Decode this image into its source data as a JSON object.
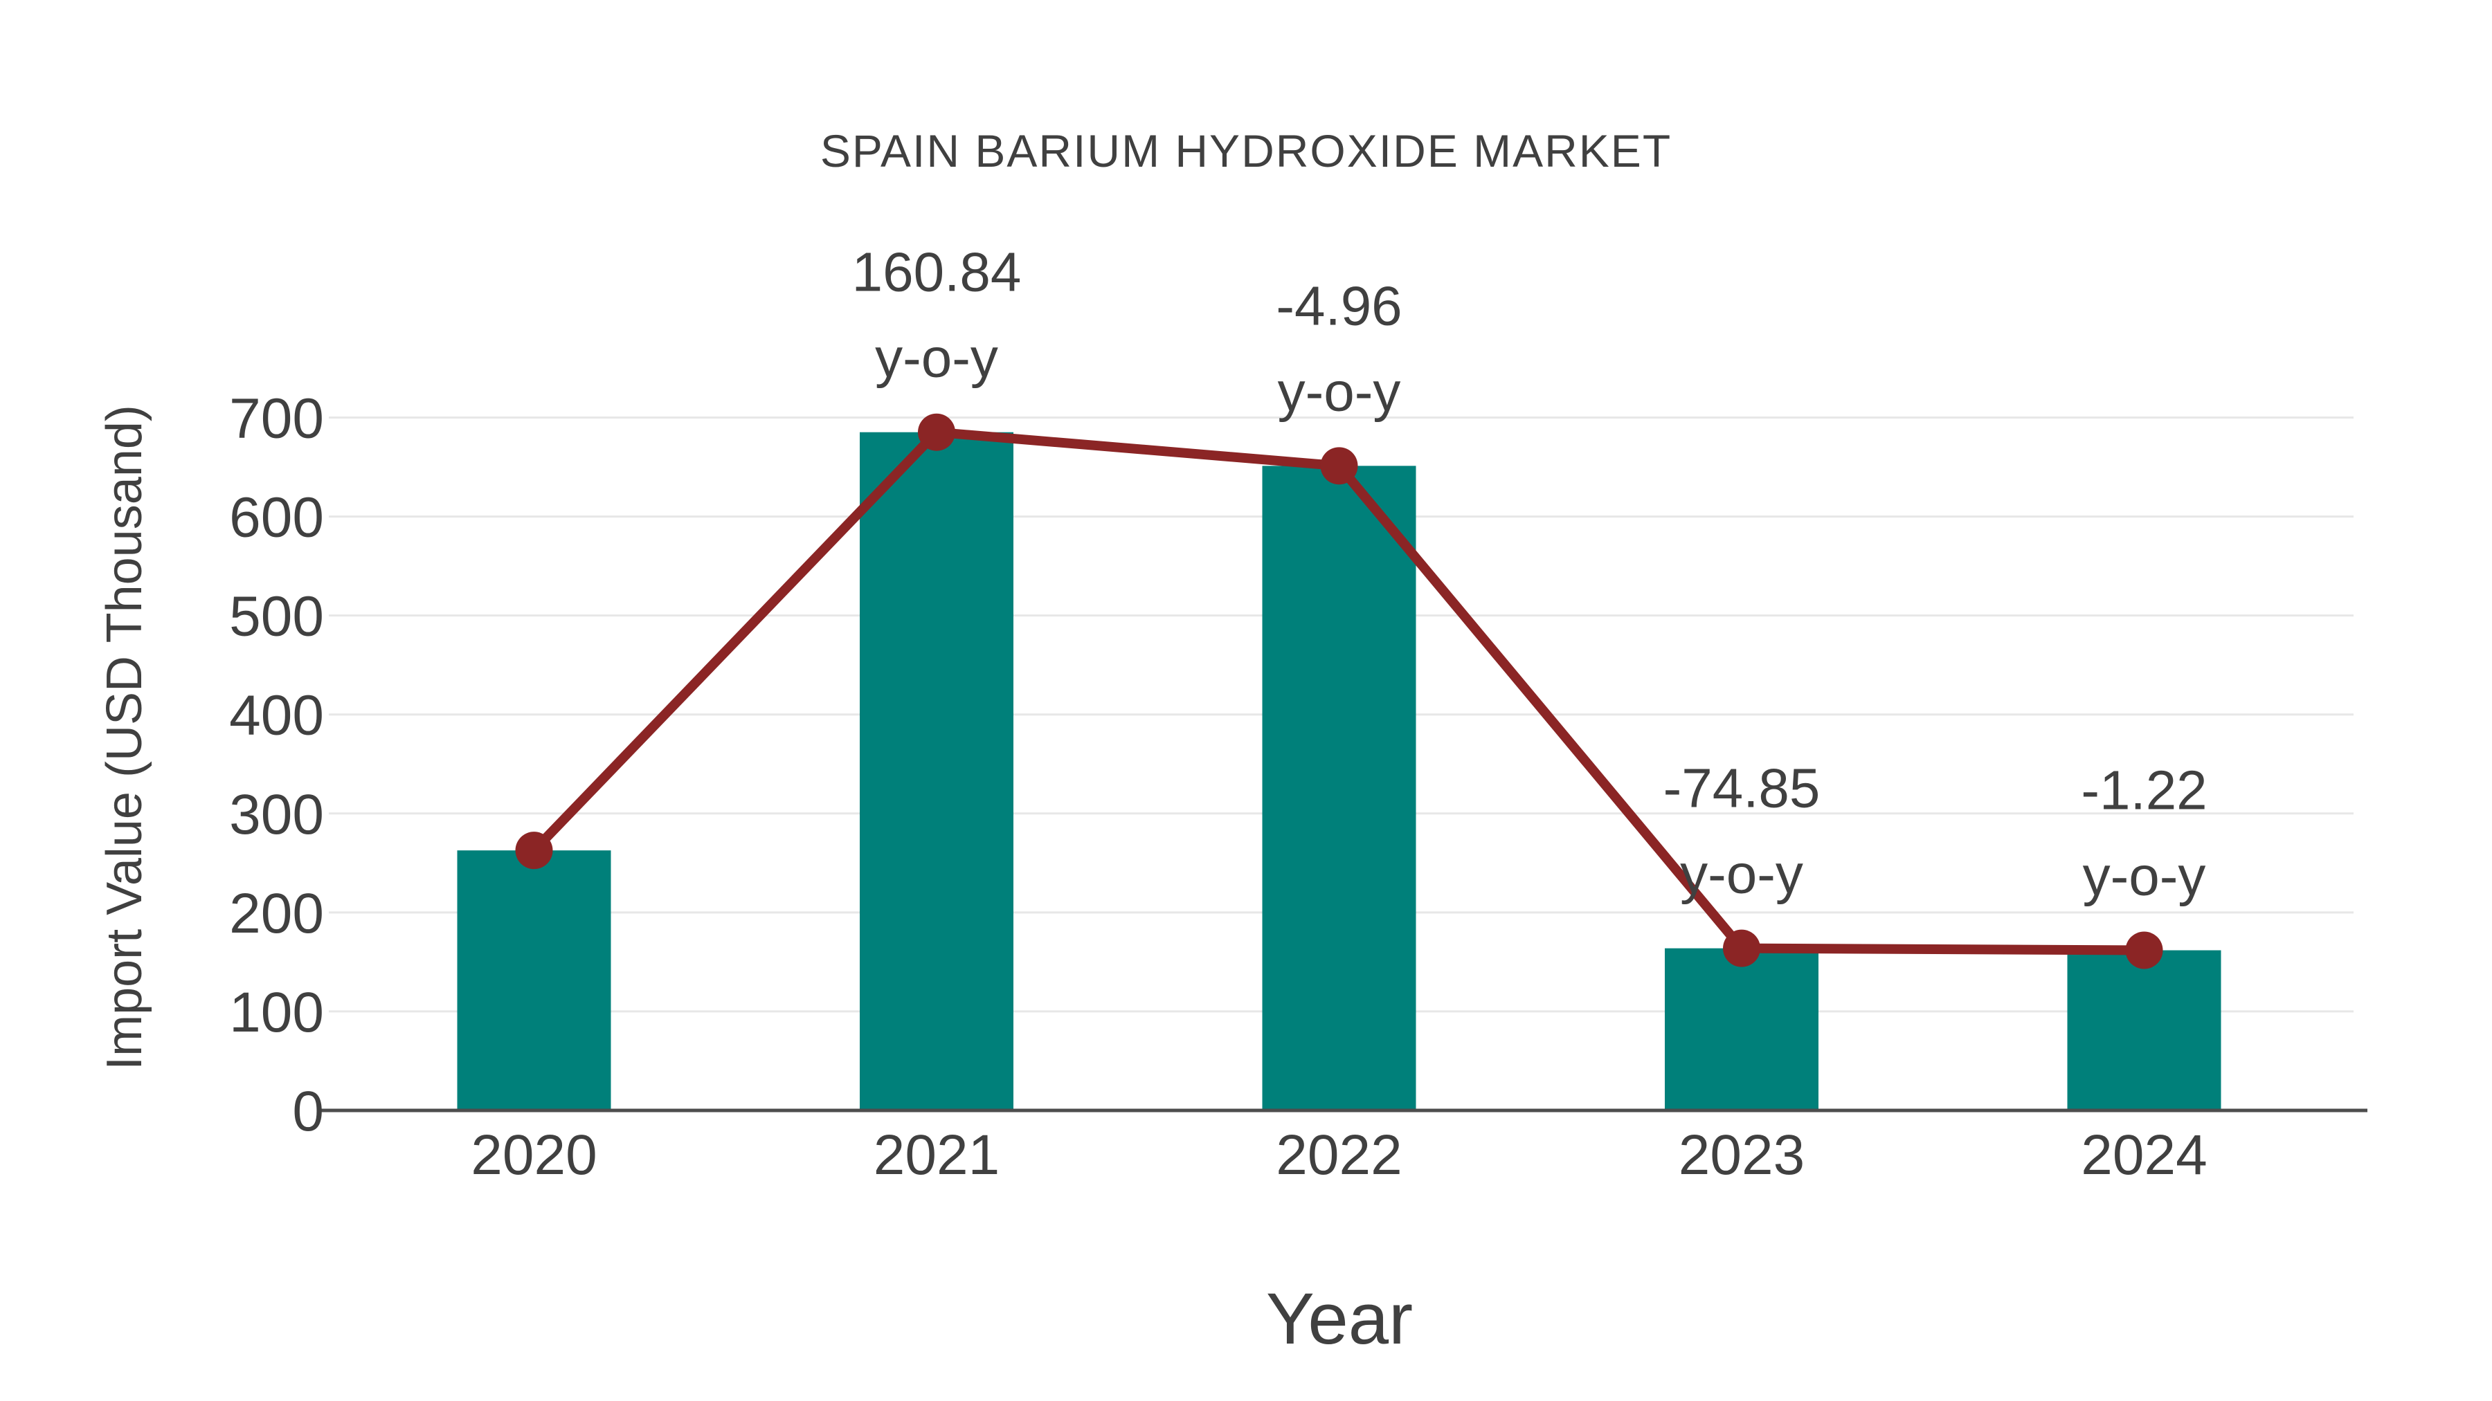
{
  "chart_data": {
    "type": "bar",
    "title": "SPAIN BARIUM HYDROXIDE MARKET",
    "xlabel": "Year",
    "ylabel": "Import Value (USD Thousand)",
    "categories": [
      "2020",
      "2021",
      "2022",
      "2023",
      "2024"
    ],
    "series": [
      {
        "name": "Import Value (USD Thousand)",
        "type": "bar",
        "color": "#00807A",
        "values": [
          262.7,
          685.2,
          651.2,
          163.8,
          161.8
        ]
      },
      {
        "name": "y-o-y trend",
        "type": "line",
        "color": "#8B2525",
        "marker": "circle",
        "values": [
          262.7,
          685.2,
          651.2,
          163.8,
          161.8
        ]
      }
    ],
    "annotations": [
      {
        "category": "2021",
        "line1": "160.84",
        "line2": "y-o-y"
      },
      {
        "category": "2022",
        "line1": "-4.96",
        "line2": "y-o-y"
      },
      {
        "category": "2023",
        "line1": "-74.85",
        "line2": "y-o-y"
      },
      {
        "category": "2024",
        "line1": "-1.22",
        "line2": "y-o-y"
      }
    ],
    "yticks": [
      0,
      100,
      200,
      300,
      400,
      500,
      600,
      700
    ],
    "ylim": [
      0,
      750
    ],
    "grid": "horizontal",
    "legend": "none",
    "colors": {
      "bar": "#00807A",
      "line": "#8B2525",
      "marker": "#8B2525",
      "text": "#404040",
      "grid": "#E7E7E7",
      "axis": "#4D4D4D",
      "background": "#FFFFFF"
    }
  }
}
